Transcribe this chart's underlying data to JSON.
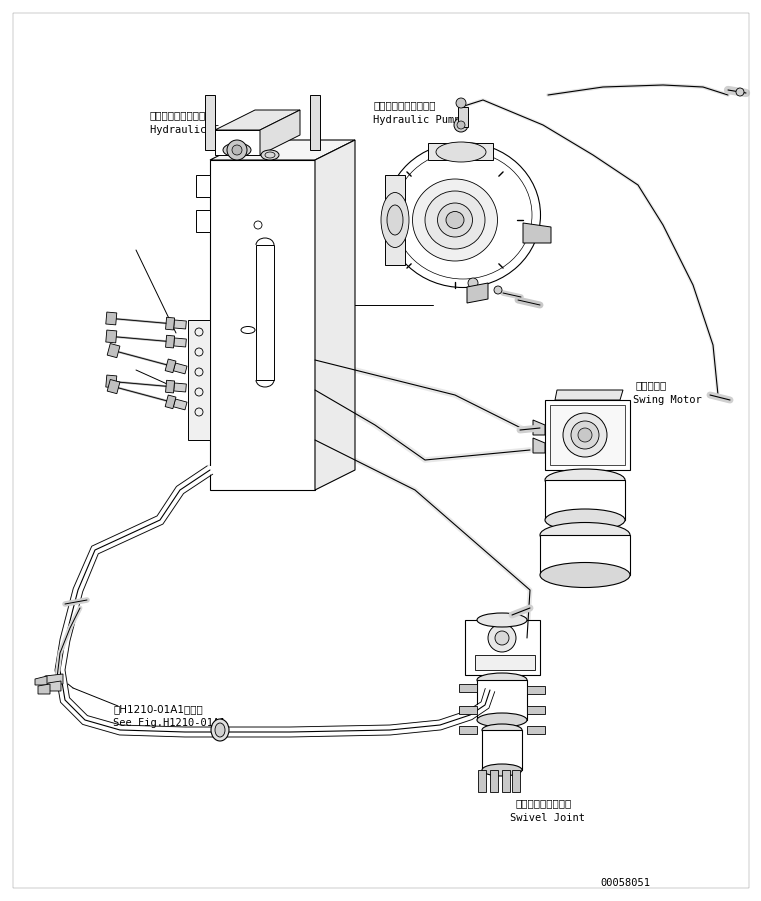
{
  "figure_number": "00058051",
  "background_color": "#ffffff",
  "line_color": "#000000",
  "labels": {
    "hydraulic_tank_jp": "ハイドロリックタンク",
    "hydraulic_tank_en": "Hydraulic Tank",
    "hydraulic_pump_jp": "ハイドロリックポンプ",
    "hydraulic_pump_en": "Hydraulic Pump",
    "swing_motor_jp": "旋回モータ",
    "swing_motor_en": "Swing Motor",
    "swivel_joint_jp": "スイベルジョイント",
    "swivel_joint_en": "Swivel Joint",
    "see_fig_jp": "第H1210-01A1図参照",
    "see_fig_en": "See Fig.H1210-01A1"
  }
}
